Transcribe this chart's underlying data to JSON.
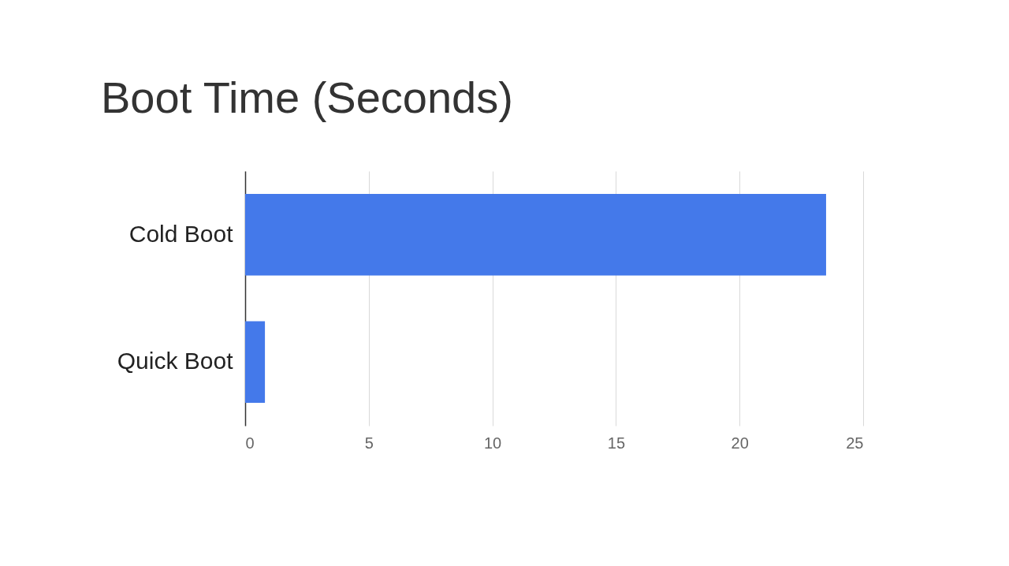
{
  "chart_data": {
    "type": "bar",
    "orientation": "horizontal",
    "title": "Boot Time (Seconds)",
    "categories": [
      "Cold Boot",
      "Quick Boot"
    ],
    "values": [
      23.5,
      0.8
    ],
    "color": "#4479ea",
    "xlim": [
      0,
      25
    ],
    "xticks": [
      0,
      5,
      10,
      15,
      20,
      25
    ],
    "grid": "x"
  }
}
